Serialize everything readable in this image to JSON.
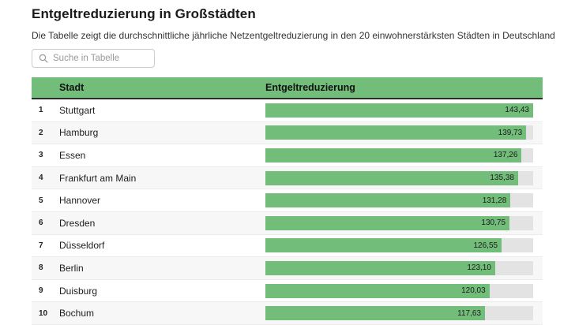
{
  "page": {
    "title": "Entgeltreduzierung in Großstädten",
    "subtitle": "Die Tabelle zeigt die durchschnittliche jährliche Netzentgeltreduzierung in den 20 einwohnerstärksten Städten in Deutschland"
  },
  "search": {
    "placeholder": "Suche in Tabelle",
    "value": "",
    "icon": "magnifier-icon"
  },
  "table": {
    "columns": {
      "rank": "",
      "city": "Stadt",
      "value": "Entgeltreduzierung"
    },
    "bar_scale_max": 143.43,
    "rows": [
      {
        "rank": "1",
        "city": "Stuttgart",
        "value": "143,43",
        "value_num": 143.43
      },
      {
        "rank": "2",
        "city": "Hamburg",
        "value": "139,73",
        "value_num": 139.73
      },
      {
        "rank": "3",
        "city": "Essen",
        "value": "137,26",
        "value_num": 137.26
      },
      {
        "rank": "4",
        "city": "Frankfurt am Main",
        "value": "135,38",
        "value_num": 135.38
      },
      {
        "rank": "5",
        "city": "Hannover",
        "value": "131,28",
        "value_num": 131.28
      },
      {
        "rank": "6",
        "city": "Dresden",
        "value": "130,75",
        "value_num": 130.75
      },
      {
        "rank": "7",
        "city": "Düsseldorf",
        "value": "126,55",
        "value_num": 126.55
      },
      {
        "rank": "8",
        "city": "Berlin",
        "value": "123,10",
        "value_num": 123.1
      },
      {
        "rank": "9",
        "city": "Duisburg",
        "value": "120,03",
        "value_num": 120.03
      },
      {
        "rank": "10",
        "city": "Bochum",
        "value": "117,63",
        "value_num": 117.63
      }
    ]
  },
  "colors": {
    "green": "#72bd79",
    "bar_track": "#e3e3e3",
    "row_alt": "#f7f7f7",
    "header_border": "#2b2b2b"
  },
  "chart_data": {
    "type": "table",
    "title": "Entgeltreduzierung in Großstädten",
    "subtitle": "Die Tabelle zeigt die durchschnittliche jährliche Netzentgeltreduzierung in den 20 einwohnerstärksten Städten in Deutschland",
    "columns": [
      "",
      "Stadt",
      "Entgeltreduzierung"
    ],
    "categories": [
      "Stuttgart",
      "Hamburg",
      "Essen",
      "Frankfurt am Main",
      "Hannover",
      "Dresden",
      "Düsseldorf",
      "Berlin",
      "Duisburg",
      "Bochum"
    ],
    "values": [
      143.43,
      139.73,
      137.26,
      135.38,
      131.28,
      130.75,
      126.55,
      123.1,
      120.03,
      117.63
    ],
    "value_labels": [
      "143,43",
      "139,73",
      "137,26",
      "135,38",
      "131,28",
      "130,75",
      "126,55",
      "123,10",
      "120,03",
      "117,63"
    ],
    "bar_axis_range": [
      0,
      143.43
    ],
    "bar_color": "#72bd79",
    "note": "Embedded bar column in table; bars scaled linearly from 0 to max value 143.43"
  }
}
